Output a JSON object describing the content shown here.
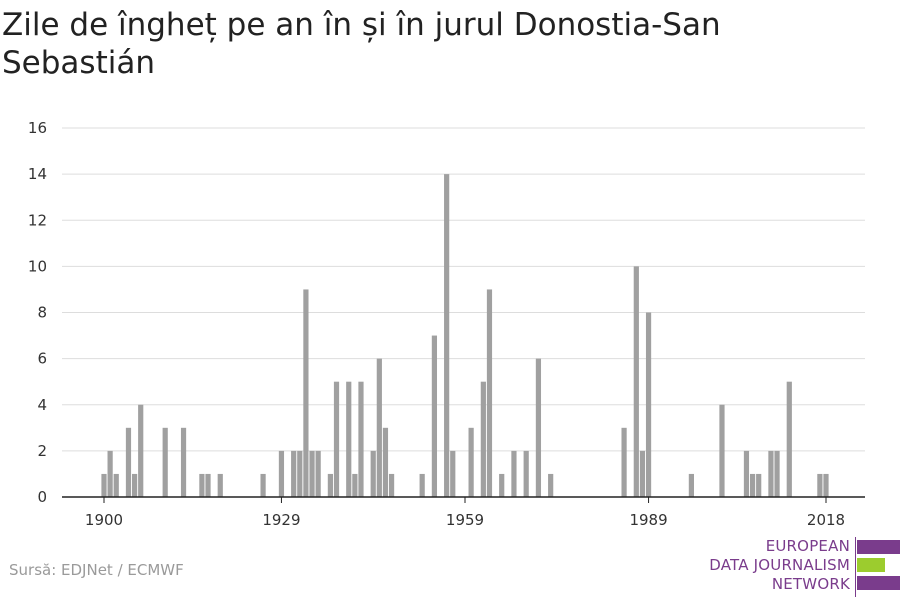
{
  "title": "Zile de îngheț pe an în și în jurul Donostia-San Sebastián",
  "source": "Sursă: EDJNet / ECMWF",
  "logo": {
    "lines": [
      "EUROPEAN",
      "DATA JOURNALISM",
      "NETWORK"
    ]
  },
  "colors": {
    "bar": "#a0a0a0",
    "grid": "#dddddd",
    "axis": "#222222",
    "logo_purple": "#7a3c8c",
    "logo_green": "#9ccc2e"
  },
  "chart_data": {
    "type": "bar",
    "title": "Zile de îngheț pe an în și în jurul Donostia-San Sebastián",
    "xlabel": "",
    "ylabel": "",
    "ylim": [
      0,
      16
    ],
    "yticks": [
      0,
      2,
      4,
      6,
      8,
      10,
      12,
      14,
      16
    ],
    "xlim": [
      1900,
      2018
    ],
    "xticks": [
      1900,
      1929,
      1959,
      1989,
      2018
    ],
    "grid": true,
    "series": [
      {
        "values": [
          [
            1900,
            1
          ],
          [
            1901,
            2
          ],
          [
            1902,
            1
          ],
          [
            1904,
            3
          ],
          [
            1905,
            1
          ],
          [
            1906,
            4
          ],
          [
            1910,
            3
          ],
          [
            1913,
            3
          ],
          [
            1916,
            1
          ],
          [
            1917,
            1
          ],
          [
            1919,
            1
          ],
          [
            1926,
            1
          ],
          [
            1929,
            2
          ],
          [
            1931,
            2
          ],
          [
            1932,
            2
          ],
          [
            1933,
            9
          ],
          [
            1934,
            2
          ],
          [
            1935,
            2
          ],
          [
            1937,
            1
          ],
          [
            1938,
            5
          ],
          [
            1940,
            5
          ],
          [
            1941,
            1
          ],
          [
            1942,
            5
          ],
          [
            1944,
            2
          ],
          [
            1945,
            6
          ],
          [
            1946,
            3
          ],
          [
            1947,
            1
          ],
          [
            1952,
            1
          ],
          [
            1954,
            7
          ],
          [
            1956,
            14
          ],
          [
            1957,
            2
          ],
          [
            1960,
            3
          ],
          [
            1962,
            5
          ],
          [
            1963,
            9
          ],
          [
            1965,
            1
          ],
          [
            1967,
            2
          ],
          [
            1969,
            2
          ],
          [
            1971,
            6
          ],
          [
            1973,
            1
          ],
          [
            1985,
            3
          ],
          [
            1987,
            10
          ],
          [
            1988,
            2
          ],
          [
            1989,
            8
          ],
          [
            1996,
            1
          ],
          [
            2001,
            4
          ],
          [
            2005,
            2
          ],
          [
            2006,
            1
          ],
          [
            2007,
            1
          ],
          [
            2009,
            2
          ],
          [
            2010,
            2
          ],
          [
            2012,
            5
          ],
          [
            2017,
            1
          ],
          [
            2018,
            1
          ]
        ]
      }
    ]
  }
}
